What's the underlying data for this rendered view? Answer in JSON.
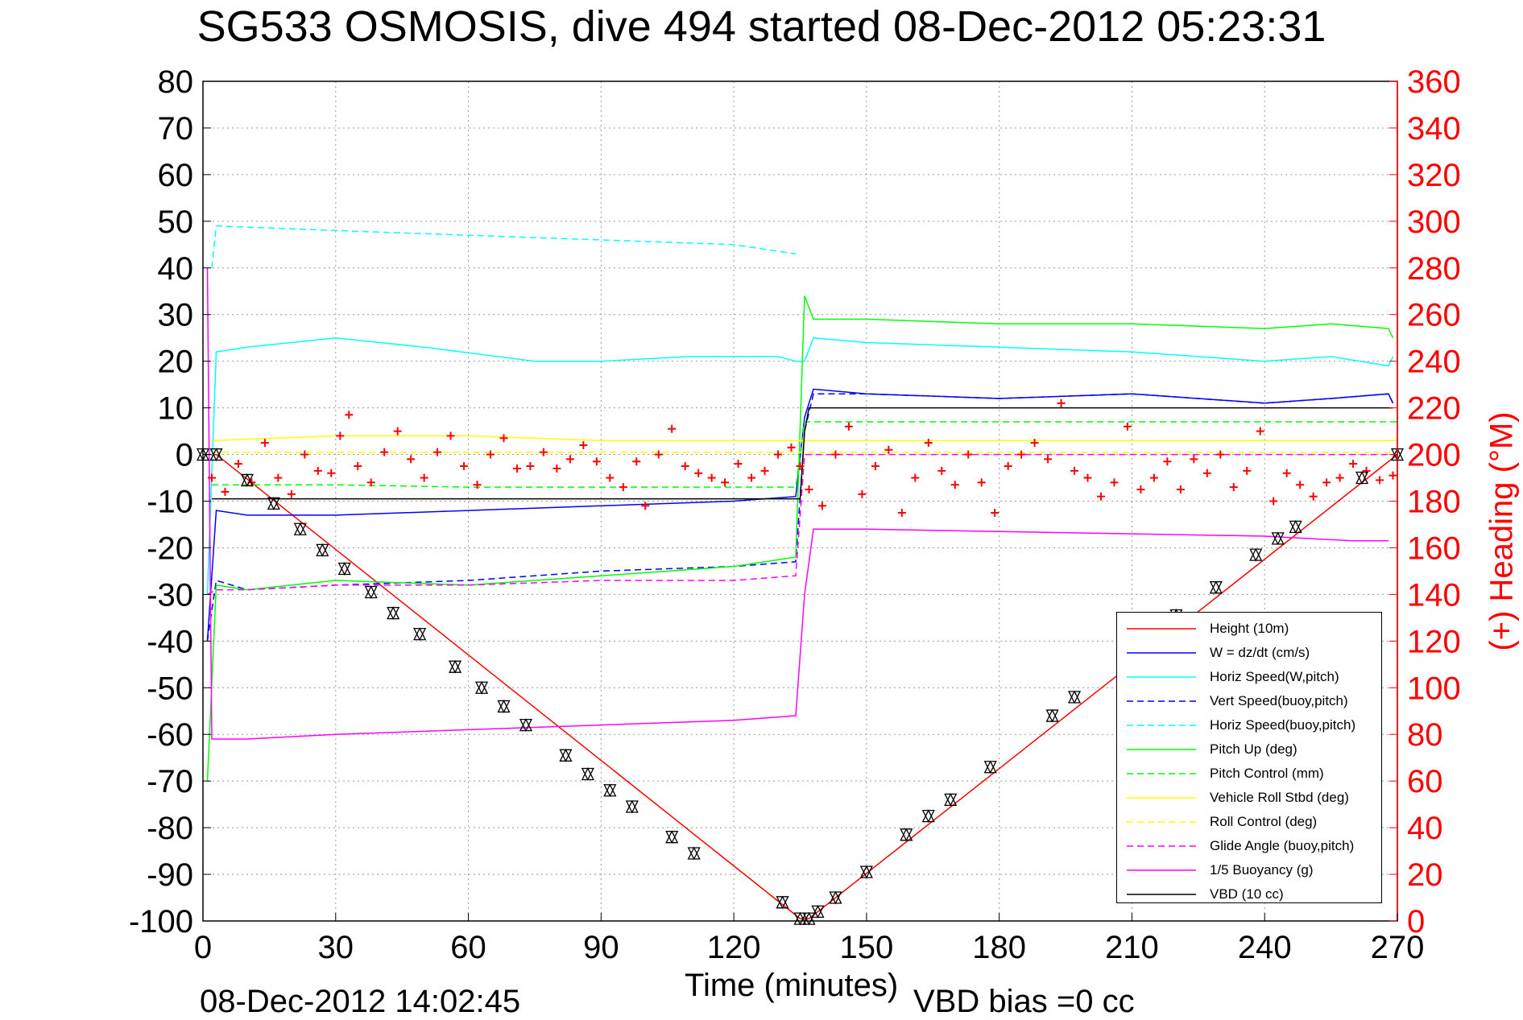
{
  "title": "SG533 OSMOSIS, dive 494 started 08-Dec-2012 05:23:31",
  "footer": {
    "timestamp": "08-Dec-2012 14:02:45",
    "vbd_bias": "VBD bias =0 cc"
  },
  "chart_data": {
    "type": "line",
    "title": "SG533 OSMOSIS, dive 494 started 08-Dec-2012 05:23:31",
    "xlabel": "Time (minutes)",
    "ylabel": "",
    "y2label": "(+) Heading (°M)",
    "xlim": [
      0,
      270
    ],
    "ylim": [
      -100,
      80
    ],
    "y2lim": [
      0,
      360
    ],
    "xticks": [
      0,
      30,
      60,
      90,
      120,
      150,
      180,
      210,
      240,
      270
    ],
    "yticks": [
      -100,
      -90,
      -80,
      -70,
      -60,
      -50,
      -40,
      -30,
      -20,
      -10,
      0,
      10,
      20,
      30,
      40,
      50,
      60,
      70,
      80
    ],
    "y2ticks": [
      0,
      20,
      40,
      60,
      80,
      100,
      120,
      140,
      160,
      180,
      200,
      220,
      240,
      260,
      280,
      300,
      320,
      340,
      360
    ],
    "grid": true,
    "legend_position": "bottom-right",
    "series": [
      {
        "name": "Height (10m)",
        "color": "#ff0000",
        "style": "solid",
        "x": [
          0,
          3,
          135,
          137,
          270
        ],
        "y": [
          0,
          0,
          -99.5,
          -99.5,
          0
        ]
      },
      {
        "name": "W = dz/dt (cm/s)",
        "color": "#0000ff",
        "style": "solid",
        "x": [
          1,
          3,
          10,
          30,
          60,
          90,
          120,
          134,
          136,
          138,
          150,
          180,
          210,
          240,
          255,
          268,
          269
        ],
        "y": [
          -40,
          -12,
          -13,
          -13,
          -12,
          -11,
          -10,
          -9,
          8,
          14,
          13,
          12,
          13,
          11,
          12,
          13,
          11
        ]
      },
      {
        "name": "Horiz Speed(W,pitch)",
        "color": "#00ffff",
        "style": "solid",
        "x": [
          1,
          3,
          10,
          30,
          50,
          75,
          90,
          110,
          130,
          134,
          136,
          138,
          150,
          180,
          210,
          240,
          255,
          268,
          269
        ],
        "y": [
          -30,
          22,
          23,
          25,
          23,
          20,
          20,
          21,
          21,
          20,
          20,
          25,
          24,
          23,
          22,
          20,
          21,
          19,
          21
        ]
      },
      {
        "name": "Vert Speed(buoy,pitch)",
        "color": "#0000ff",
        "style": "dashed",
        "x": [
          1,
          3,
          10,
          30,
          60,
          90,
          120,
          134,
          136,
          138,
          150,
          180,
          210,
          240,
          255,
          268,
          269
        ],
        "y": [
          -40,
          -27,
          -29,
          -28,
          -27,
          -25,
          -24,
          -23,
          5,
          13,
          13,
          12,
          13,
          11,
          12,
          13,
          11
        ]
      },
      {
        "name": "Horiz Speed(buoy,pitch)",
        "color": "#00ffff",
        "style": "dashed",
        "x": [
          2,
          3,
          30,
          60,
          90,
          120,
          134
        ],
        "y": [
          40,
          49,
          48,
          47,
          46,
          45,
          43
        ]
      },
      {
        "name": "Pitch Up (deg)",
        "color": "#00ff00",
        "style": "solid",
        "x": [
          1,
          3,
          10,
          30,
          60,
          90,
          120,
          134,
          136,
          138,
          150,
          180,
          210,
          240,
          255,
          268,
          269
        ],
        "y": [
          -70,
          -28,
          -29,
          -27,
          -28,
          -26,
          -24,
          -22,
          34,
          29,
          29,
          28,
          28,
          27,
          28,
          27,
          25
        ]
      },
      {
        "name": "Pitch Control (mm)",
        "color": "#00ff00",
        "style": "dashed",
        "x": [
          2,
          30,
          60,
          90,
          120,
          134,
          136,
          180,
          210,
          240,
          270
        ],
        "y": [
          -6.5,
          -6.5,
          -7,
          -7,
          -7,
          -7,
          7,
          7,
          7,
          7,
          7
        ]
      },
      {
        "name": "Vehicle Roll Stbd (deg)",
        "color": "#ffff00",
        "style": "solid",
        "x": [
          2,
          30,
          60,
          90,
          120,
          134,
          136,
          150,
          180,
          210,
          240,
          270
        ],
        "y": [
          3,
          4,
          4,
          3,
          3,
          3,
          3,
          3,
          3,
          3,
          3,
          3
        ]
      },
      {
        "name": "Roll Control (deg)",
        "color": "#ffff00",
        "style": "dashed",
        "x": [
          2,
          270
        ],
        "y": [
          0.5,
          0.5
        ]
      },
      {
        "name": "Glide Angle (buoy,pitch)",
        "color": "#ff00ff",
        "style": "dashed",
        "x": [
          1,
          3,
          10,
          30,
          60,
          90,
          120,
          134,
          136,
          138,
          150,
          180,
          210,
          240,
          270
        ],
        "y": [
          -30,
          -29,
          -29,
          -28,
          -28,
          -27,
          -27,
          -26,
          0,
          0,
          0,
          0,
          0,
          0,
          0
        ]
      },
      {
        "name": "1/5 Buoyancy (g)",
        "color": "#ff00ff",
        "style": "solid",
        "x": [
          1,
          2,
          3,
          10,
          30,
          60,
          90,
          120,
          134,
          136,
          138,
          150,
          180,
          210,
          240,
          260,
          268
        ],
        "y": [
          40,
          -61,
          -61,
          -61,
          -60,
          -59,
          -58,
          -57,
          -56,
          -30,
          -16,
          -16,
          -16.5,
          -17,
          -17.5,
          -18.5,
          -18.5
        ]
      },
      {
        "name": "VBD (10 cc)",
        "color": "#000000",
        "style": "solid",
        "x": [
          2,
          30,
          60,
          90,
          120,
          135,
          136,
          137,
          160,
          190,
          220,
          250,
          269
        ],
        "y": [
          -9.5,
          -9.5,
          -9.5,
          -9.5,
          -9.5,
          -9.5,
          5,
          10,
          10,
          10,
          10,
          10,
          10
        ]
      }
    ],
    "heading": {
      "axis": "right",
      "unit": "°M",
      "color": "#ff0000",
      "marker": "+",
      "x": [
        2,
        5,
        8,
        11,
        14,
        17,
        20,
        23,
        26,
        29,
        31,
        33,
        35,
        38,
        41,
        44,
        47,
        50,
        53,
        56,
        59,
        62,
        65,
        68,
        71,
        74,
        77,
        80,
        83,
        86,
        89,
        92,
        95,
        98,
        100,
        103,
        106,
        109,
        112,
        115,
        118,
        121,
        124,
        127,
        130,
        133,
        135,
        137,
        140,
        143,
        146,
        149,
        152,
        155,
        158,
        161,
        164,
        167,
        170,
        173,
        176,
        179,
        182,
        185,
        188,
        191,
        194,
        197,
        200,
        203,
        206,
        209,
        212,
        215,
        218,
        221,
        224,
        227,
        230,
        233,
        236,
        239,
        242,
        245,
        248,
        251,
        254,
        257,
        260,
        263,
        266,
        269
      ],
      "y": [
        190,
        184,
        196,
        188,
        205,
        190,
        183,
        200,
        193,
        192,
        208,
        217,
        195,
        188,
        201,
        210,
        198,
        190,
        201,
        208,
        195,
        187,
        200,
        207,
        194,
        195,
        201,
        194,
        198,
        204,
        197,
        190,
        186,
        197,
        178,
        200,
        211,
        195,
        192,
        190,
        188,
        196,
        190,
        193,
        200,
        203,
        195,
        185,
        178,
        200,
        212,
        183,
        195,
        202,
        175,
        190,
        205,
        193,
        187,
        200,
        188,
        175,
        195,
        200,
        205,
        198,
        222,
        193,
        190,
        182,
        188,
        212,
        185,
        190,
        197,
        185,
        198,
        192,
        200,
        186,
        193,
        210,
        180,
        192,
        187,
        182,
        188,
        190,
        196,
        193,
        189,
        191
      ]
    },
    "height_markers": {
      "x": [
        0,
        3,
        10,
        16,
        22,
        27,
        32,
        38,
        43,
        49,
        57,
        63,
        68,
        73,
        82,
        87,
        92,
        97,
        106,
        111,
        131,
        135,
        137,
        139,
        143,
        150,
        159,
        164,
        169,
        178,
        192,
        197,
        220,
        229,
        238,
        243,
        247,
        262,
        270
      ],
      "y": [
        0,
        0,
        -5.5,
        -10.5,
        -16,
        -20.5,
        -24.5,
        -29.5,
        -34,
        -38.5,
        -45.5,
        -50,
        -54,
        -58,
        -64.5,
        -68.5,
        -72,
        -75.5,
        -82,
        -85.5,
        -96,
        -99.5,
        -99.5,
        -98,
        -95,
        -89.5,
        -81.5,
        -77.5,
        -74,
        -67,
        -56,
        -52,
        -34.5,
        -28.5,
        -21.5,
        -18,
        -15.5,
        -5,
        0
      ]
    }
  }
}
